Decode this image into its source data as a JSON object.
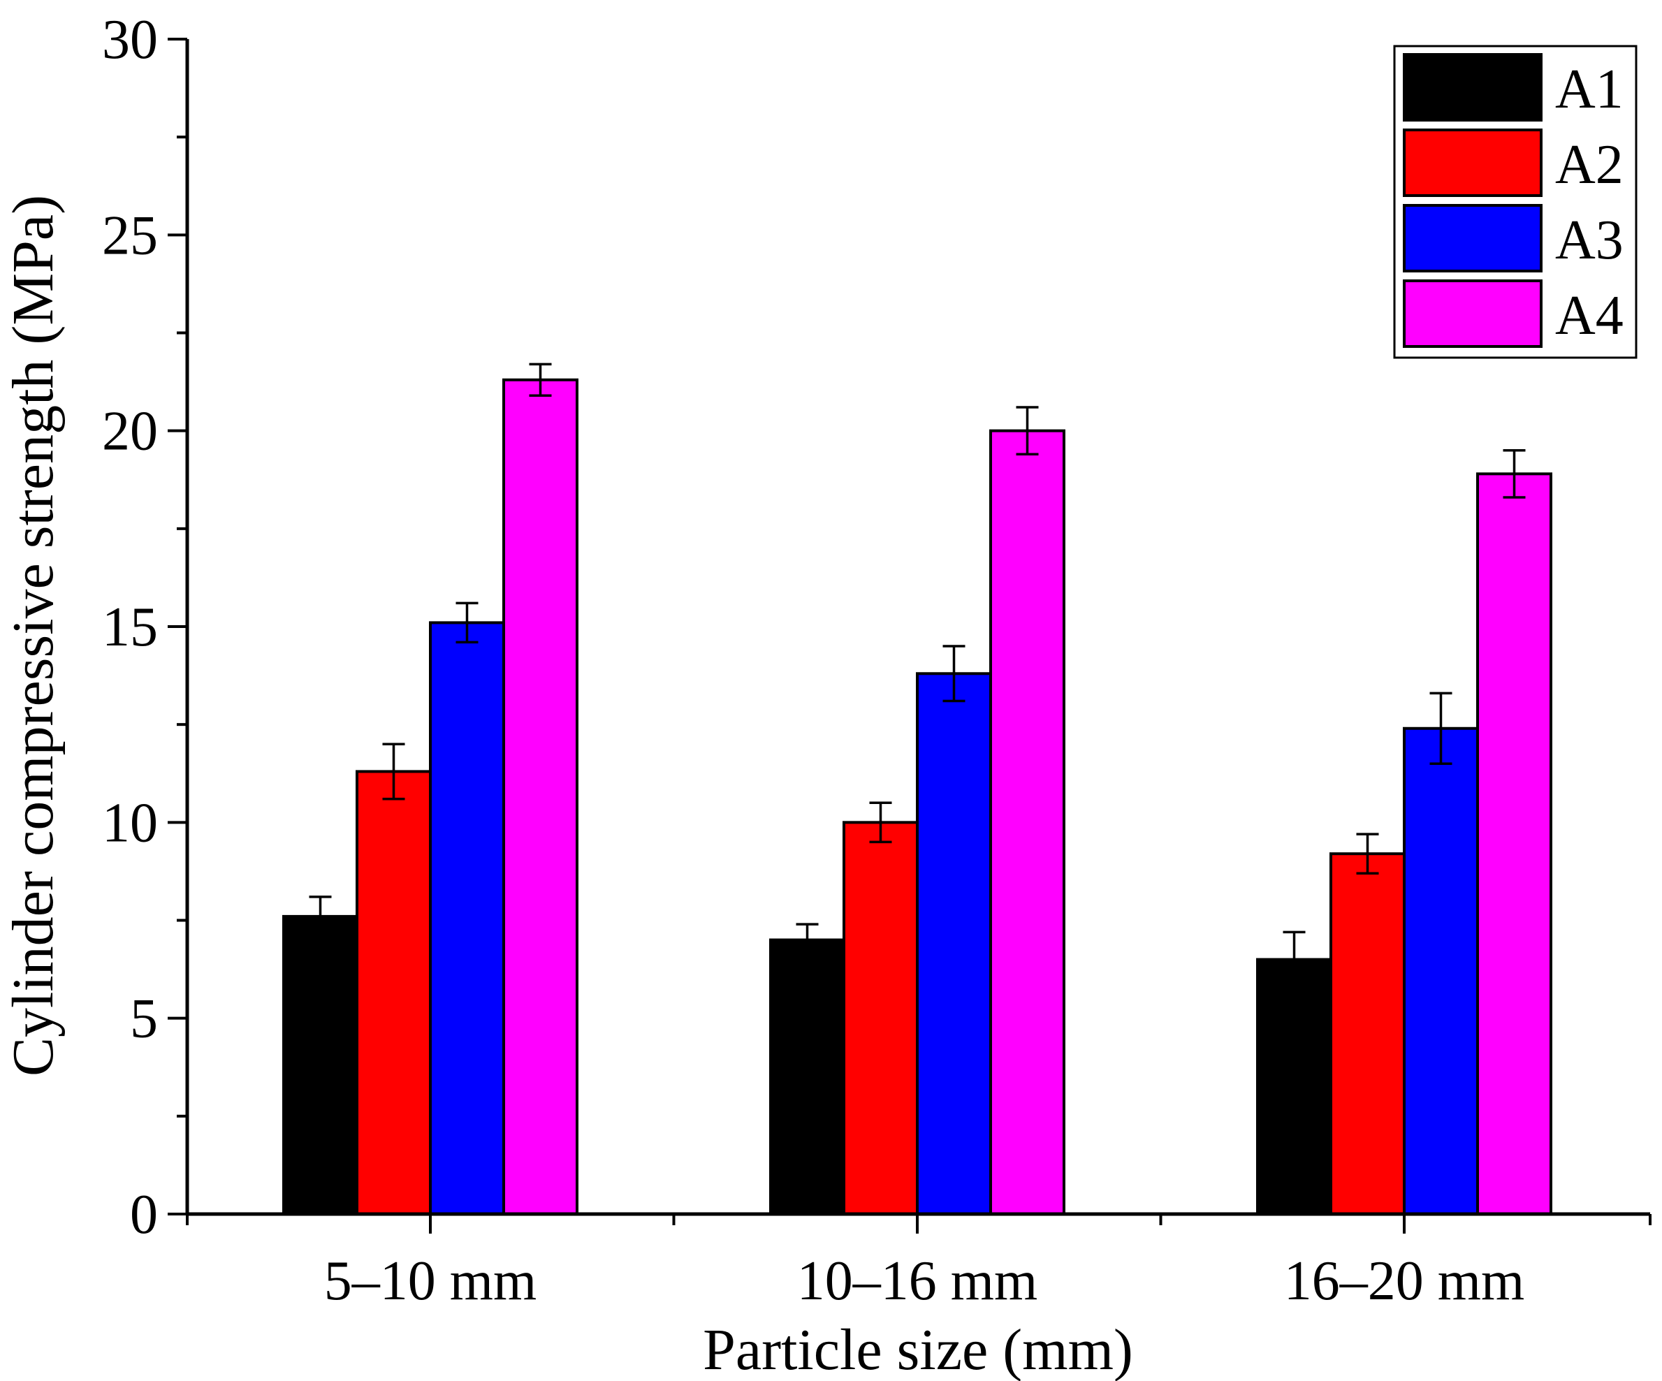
{
  "chart_data": {
    "type": "bar",
    "title": "",
    "xlabel": "Particle size (mm)",
    "ylabel": "Cylinder compressive strength (MPa)",
    "ylim": [
      0,
      30
    ],
    "yticks": [
      0,
      5,
      10,
      15,
      20,
      25,
      30
    ],
    "categories": [
      "5–10 mm",
      "10–16 mm",
      "16–20 mm"
    ],
    "series": [
      {
        "name": "A1",
        "color": "#000000",
        "values": [
          7.6,
          7.0,
          6.5
        ],
        "errors": [
          0.5,
          0.4,
          0.7
        ]
      },
      {
        "name": "A2",
        "color": "#ff0000",
        "values": [
          11.3,
          10.0,
          9.2
        ],
        "errors": [
          0.7,
          0.5,
          0.5
        ]
      },
      {
        "name": "A3",
        "color": "#0000ff",
        "values": [
          15.1,
          13.8,
          12.4
        ],
        "errors": [
          0.5,
          0.7,
          0.9
        ]
      },
      {
        "name": "A4",
        "color": "#ff00ff",
        "values": [
          21.3,
          20.0,
          18.9
        ],
        "errors": [
          0.4,
          0.6,
          0.6
        ]
      }
    ],
    "legend_position": "top-right",
    "grid": false
  }
}
